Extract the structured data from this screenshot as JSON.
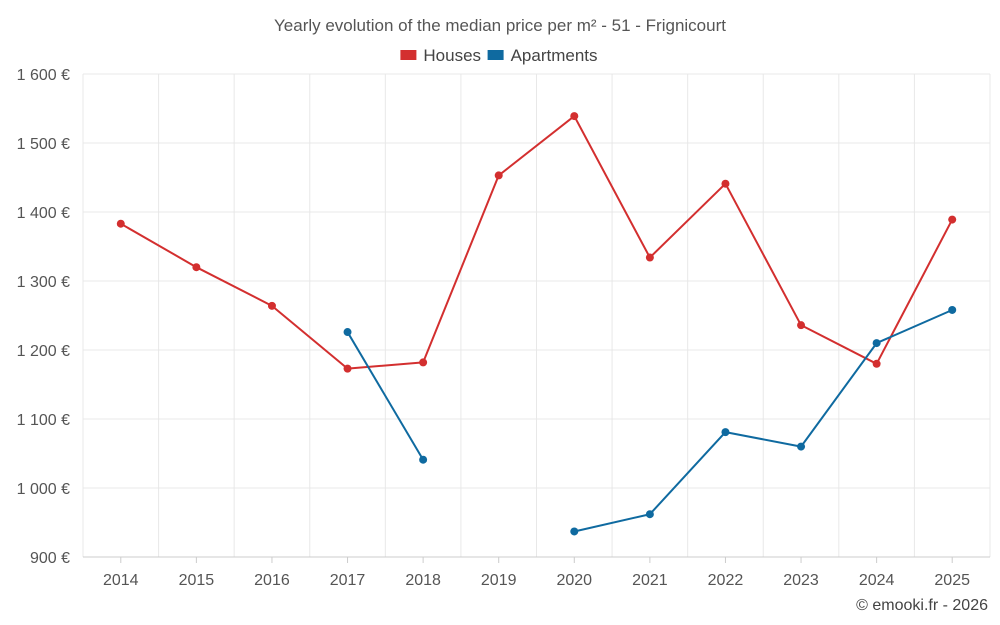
{
  "chart_data": {
    "type": "line",
    "title": "Yearly evolution of the median price per m² - 51 - Frignicourt",
    "categories": [
      "2014",
      "2015",
      "2016",
      "2017",
      "2018",
      "2019",
      "2020",
      "2021",
      "2022",
      "2023",
      "2024",
      "2025"
    ],
    "ylim": [
      900,
      1600
    ],
    "yticks": [
      900,
      1000,
      1100,
      1200,
      1300,
      1400,
      1500,
      1600
    ],
    "ytick_labels": [
      "900 €",
      "1 000 €",
      "1 100 €",
      "1 200 €",
      "1 300 €",
      "1 400 €",
      "1 500 €",
      "1 600 €"
    ],
    "grid": true,
    "legend_position": "top-center",
    "series": [
      {
        "name": "Houses",
        "color": "#d32f2f",
        "values": [
          1383,
          1320,
          1264,
          1173,
          1182,
          1453,
          1539,
          1334,
          1441,
          1236,
          1180,
          1389
        ]
      },
      {
        "name": "Apartments",
        "color": "#0f6aa0",
        "values": [
          null,
          null,
          null,
          1226,
          1041,
          null,
          937,
          962,
          1081,
          1060,
          1210,
          1258
        ]
      }
    ]
  },
  "credit": "© emooki.fr - 2026"
}
